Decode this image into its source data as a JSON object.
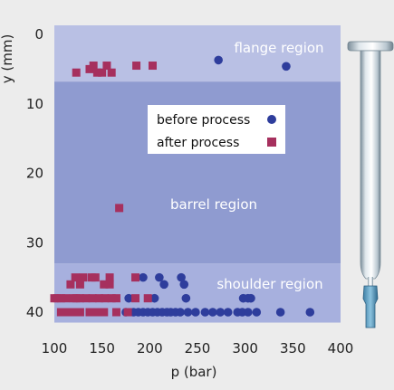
{
  "chart_data": {
    "type": "scatter",
    "xlabel": "p (bar)",
    "ylabel": "y (mm)",
    "xlim": [
      100,
      400
    ],
    "ylim": [
      0,
      41
    ],
    "y_inverted": true,
    "xticks": [
      "100",
      "150",
      "200",
      "250",
      "300",
      "350",
      "400"
    ],
    "yticks": [
      "0",
      "10",
      "20",
      "30",
      "40"
    ],
    "colors": {
      "background": "#ececec",
      "plot_region": "#8f9bd0",
      "flange_band": "#b9c0e4",
      "barrel_band": "#8f9bd0",
      "shoulder_band": "#a7b0de",
      "before_process": "#2e3d9c",
      "after_process": "#a6305e"
    },
    "regions": [
      {
        "name": "flange region",
        "y_range": [
          -1.5,
          6.8
        ]
      },
      {
        "name": "barrel region",
        "y_range": [
          6.8,
          33
        ]
      },
      {
        "name": "shoulder region",
        "y_range": [
          33,
          41.5
        ]
      }
    ],
    "legend": {
      "position": "upper-center"
    },
    "series": [
      {
        "name": "before process",
        "marker": "circle",
        "points": [
          [
            272,
            3.7
          ],
          [
            343,
            4.6
          ],
          [
            175,
            40
          ],
          [
            183,
            40
          ],
          [
            188,
            40
          ],
          [
            193,
            40
          ],
          [
            198,
            40
          ],
          [
            203,
            40
          ],
          [
            208,
            40
          ],
          [
            213,
            40
          ],
          [
            218,
            40
          ],
          [
            222,
            40
          ],
          [
            227,
            40
          ],
          [
            232,
            40
          ],
          [
            240,
            40
          ],
          [
            248,
            40
          ],
          [
            258,
            40
          ],
          [
            266,
            40
          ],
          [
            274,
            40
          ],
          [
            282,
            40
          ],
          [
            292,
            40
          ],
          [
            297,
            40
          ],
          [
            303,
            40
          ],
          [
            312,
            40
          ],
          [
            337,
            40
          ],
          [
            368,
            40
          ],
          [
            178,
            38
          ],
          [
            205,
            38
          ],
          [
            238,
            38
          ],
          [
            298,
            38
          ],
          [
            303,
            38
          ],
          [
            306,
            38
          ],
          [
            215,
            36
          ],
          [
            236,
            36
          ],
          [
            193,
            35
          ],
          [
            210,
            35
          ],
          [
            233,
            35
          ]
        ]
      },
      {
        "name": "after process",
        "marker": "square",
        "points": [
          [
            123,
            5.5
          ],
          [
            137,
            5
          ],
          [
            141,
            4.5
          ],
          [
            145,
            5.5
          ],
          [
            150,
            5.5
          ],
          [
            155,
            4.5
          ],
          [
            160,
            5.5
          ],
          [
            186,
            4.5
          ],
          [
            203,
            4.5
          ],
          [
            168,
            25
          ],
          [
            100,
            38
          ],
          [
            103,
            38
          ],
          [
            107,
            38
          ],
          [
            112,
            38
          ],
          [
            120,
            38
          ],
          [
            123,
            38
          ],
          [
            127,
            38
          ],
          [
            133,
            38
          ],
          [
            140,
            38
          ],
          [
            147,
            38
          ],
          [
            153,
            38
          ],
          [
            160,
            38
          ],
          [
            165,
            38
          ],
          [
            185,
            38
          ],
          [
            198,
            38
          ],
          [
            107,
            40
          ],
          [
            112,
            40
          ],
          [
            117,
            40
          ],
          [
            123,
            40
          ],
          [
            127,
            40
          ],
          [
            137,
            40
          ],
          [
            142,
            40
          ],
          [
            147,
            40
          ],
          [
            152,
            40
          ],
          [
            165,
            40
          ],
          [
            177,
            40
          ],
          [
            117,
            36
          ],
          [
            127,
            36
          ],
          [
            152,
            36
          ],
          [
            158,
            36
          ],
          [
            122,
            35
          ],
          [
            130,
            35
          ],
          [
            139,
            35
          ],
          [
            143,
            35
          ],
          [
            158,
            35
          ],
          [
            185,
            35
          ]
        ]
      }
    ]
  }
}
